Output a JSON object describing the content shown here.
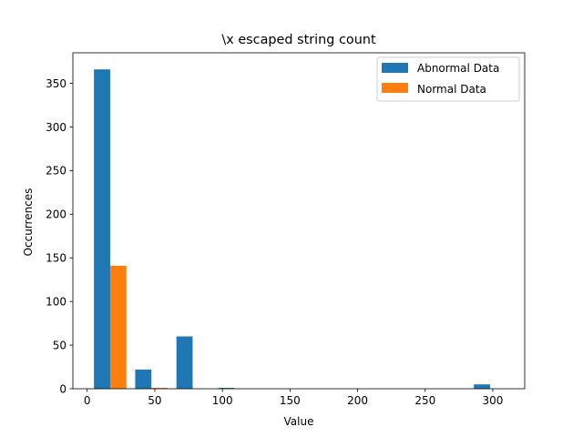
{
  "chart_data": {
    "type": "bar",
    "title": "\\x escaped string count",
    "xlabel": "Value",
    "ylabel": "Occurrences",
    "xlim": [
      -10.6,
      323.6
    ],
    "ylim": [
      0,
      385
    ],
    "xticks": [
      0,
      50,
      100,
      150,
      200,
      250,
      300
    ],
    "yticks": [
      0,
      50,
      100,
      150,
      200,
      250,
      300,
      350
    ],
    "grid": false,
    "legend_position": "top-right",
    "series": [
      {
        "name": "Abnormal Data",
        "color": "#1f77b4",
        "bars": [
          {
            "x0": 5.0,
            "x1": 17.0,
            "value": 366
          },
          {
            "x0": 35.5,
            "x1": 47.5,
            "value": 22
          },
          {
            "x0": 66.0,
            "x1": 78.0,
            "value": 60
          },
          {
            "x0": 97.0,
            "x1": 109.0,
            "value": 1
          },
          {
            "x0": 286.0,
            "x1": 298.0,
            "value": 5
          }
        ]
      },
      {
        "name": "Normal Data",
        "color": "#ff7f0e",
        "bars": [
          {
            "x0": 17.0,
            "x1": 29.0,
            "value": 141
          },
          {
            "x0": 47.5,
            "x1": 59.5,
            "value": 1
          }
        ]
      }
    ]
  }
}
